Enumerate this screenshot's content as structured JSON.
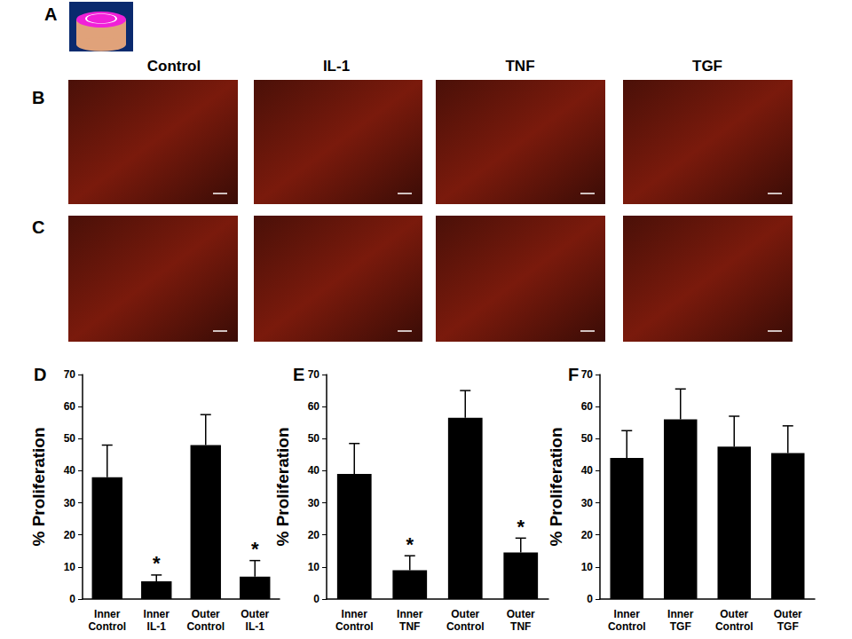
{
  "figure": {
    "panel_labels": {
      "A": "A",
      "B": "B",
      "C": "C"
    },
    "image_columns": [
      "Control",
      "IL-1",
      "TNF",
      "TGF"
    ]
  },
  "chart_data": [
    {
      "type": "bar",
      "panel": "D",
      "y_label": "% Proliferation",
      "categories": [
        "Inner\nControl",
        "Inner\nIL-1",
        "Outer\nControl",
        "Outer\nIL-1"
      ],
      "values": [
        38,
        5.5,
        48,
        7
      ],
      "errors": [
        10,
        2,
        9.5,
        5
      ],
      "annotations": [
        null,
        "*",
        null,
        "*"
      ],
      "color": "#000000",
      "ylim": [
        0,
        70
      ],
      "yticks": [
        0,
        10,
        20,
        30,
        40,
        50,
        60,
        70
      ],
      "grid": false
    },
    {
      "type": "bar",
      "panel": "E",
      "y_label": "% Proliferation",
      "categories": [
        "Inner\nControl",
        "Inner\nTNF",
        "Outer\nControl",
        "Outer\nTNF"
      ],
      "values": [
        39,
        9,
        56.5,
        14.5
      ],
      "errors": [
        9.5,
        4.5,
        8.5,
        4.5
      ],
      "annotations": [
        null,
        "*",
        null,
        "*"
      ],
      "color": "#000000",
      "ylim": [
        0,
        70
      ],
      "yticks": [
        0,
        10,
        20,
        30,
        40,
        50,
        60,
        70
      ],
      "grid": false
    },
    {
      "type": "bar",
      "panel": "F",
      "y_label": "% Proliferation",
      "categories": [
        "Inner\nControl",
        "Inner\nTGF",
        "Outer\nControl",
        "Outer\nTGF"
      ],
      "values": [
        44,
        56,
        47.5,
        45.5
      ],
      "errors": [
        8.5,
        9.5,
        9.5,
        8.5
      ],
      "annotations": [
        null,
        null,
        null,
        null
      ],
      "color": "#000000",
      "ylim": [
        0,
        70
      ],
      "yticks": [
        0,
        10,
        20,
        30,
        40,
        50,
        60,
        70
      ],
      "grid": false
    }
  ]
}
